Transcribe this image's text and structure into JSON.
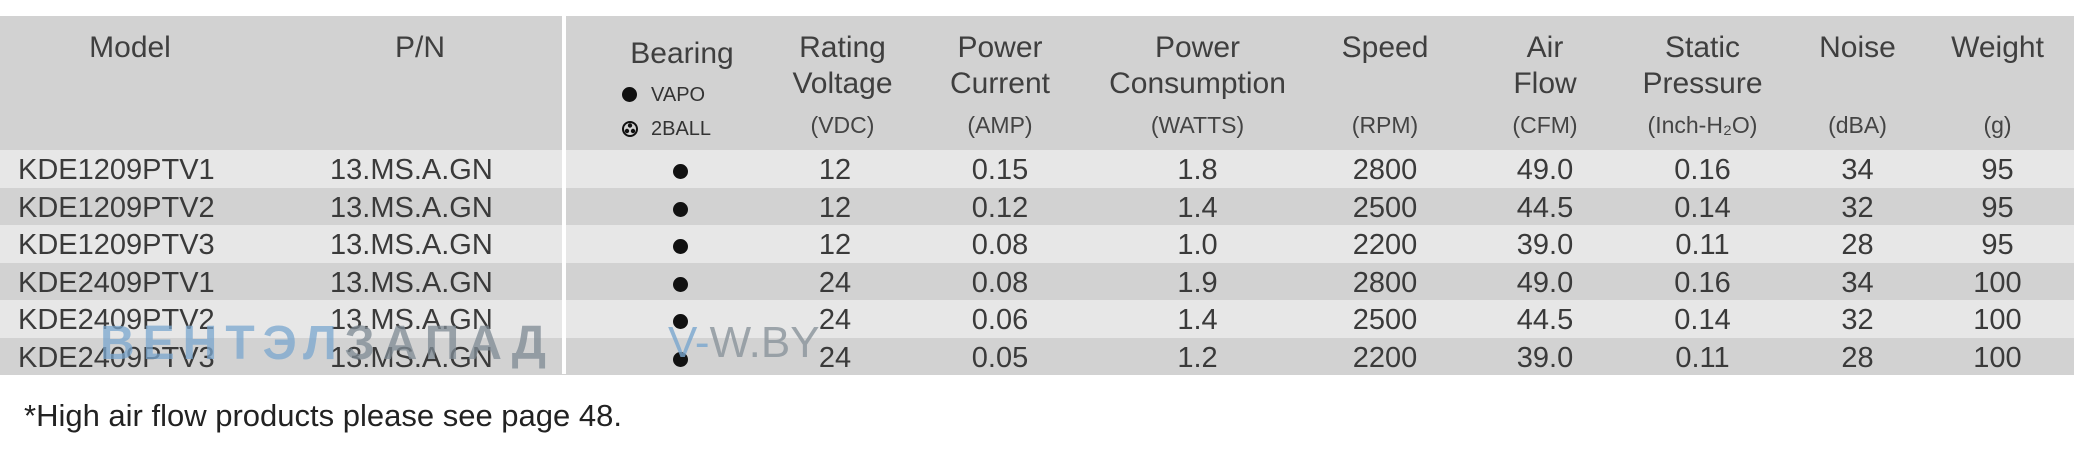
{
  "headers": {
    "model": "Model",
    "pn": "P/N",
    "bearing": "Bearing",
    "bearing_vapo": "VAPO",
    "bearing_2ball": "2BALL",
    "rating_voltage_1": "Rating",
    "rating_voltage_2": "Voltage",
    "rating_voltage_unit": "(VDC)",
    "power_current_1": "Power",
    "power_current_2": "Current",
    "power_current_unit": "(AMP)",
    "power_consumption_1": "Power",
    "power_consumption_2": "Consumption",
    "power_consumption_unit": "(WATTS)",
    "speed": "Speed",
    "speed_unit": "(RPM)",
    "air_flow_1": "Air",
    "air_flow_2": "Flow",
    "air_flow_unit": "(CFM)",
    "static_pressure_1": "Static",
    "static_pressure_2": "Pressure",
    "static_pressure_unit": "(Inch-H₂O)",
    "noise": "Noise",
    "noise_unit": "(dBA)",
    "weight": "Weight",
    "weight_unit": "(g)"
  },
  "rows": [
    {
      "model": "KDE1209PTV1",
      "pn": "13.MS.A.GN",
      "bearing": "VAPO",
      "voltage": "12",
      "current": "0.15",
      "power": "1.8",
      "speed": "2800",
      "airflow": "49.0",
      "pressure": "0.16",
      "noise": "34",
      "weight": "95"
    },
    {
      "model": "KDE1209PTV2",
      "pn": "13.MS.A.GN",
      "bearing": "VAPO",
      "voltage": "12",
      "current": "0.12",
      "power": "1.4",
      "speed": "2500",
      "airflow": "44.5",
      "pressure": "0.14",
      "noise": "32",
      "weight": "95"
    },
    {
      "model": "KDE1209PTV3",
      "pn": "13.MS.A.GN",
      "bearing": "VAPO",
      "voltage": "12",
      "current": "0.08",
      "power": "1.0",
      "speed": "2200",
      "airflow": "39.0",
      "pressure": "0.11",
      "noise": "28",
      "weight": "95"
    },
    {
      "model": "KDE2409PTV1",
      "pn": "13.MS.A.GN",
      "bearing": "VAPO",
      "voltage": "24",
      "current": "0.08",
      "power": "1.9",
      "speed": "2800",
      "airflow": "49.0",
      "pressure": "0.16",
      "noise": "34",
      "weight": "100"
    },
    {
      "model": "KDE2409PTV2",
      "pn": "13.MS.A.GN",
      "bearing": "VAPO",
      "voltage": "24",
      "current": "0.06",
      "power": "1.4",
      "speed": "2500",
      "airflow": "44.5",
      "pressure": "0.14",
      "noise": "32",
      "weight": "100"
    },
    {
      "model": "KDE2409PTV3",
      "pn": "13.MS.A.GN",
      "bearing": "VAPO",
      "voltage": "24",
      "current": "0.05",
      "power": "1.2",
      "speed": "2200",
      "airflow": "39.0",
      "pressure": "0.11",
      "noise": "28",
      "weight": "100"
    }
  ],
  "watermark": {
    "part1": "ВЕНТЭЛ",
    "part2": "ЗАПАД",
    "site_prefix": "V-",
    "site_rest": "W.BY"
  },
  "footnote": "*High air flow products please see page 48."
}
